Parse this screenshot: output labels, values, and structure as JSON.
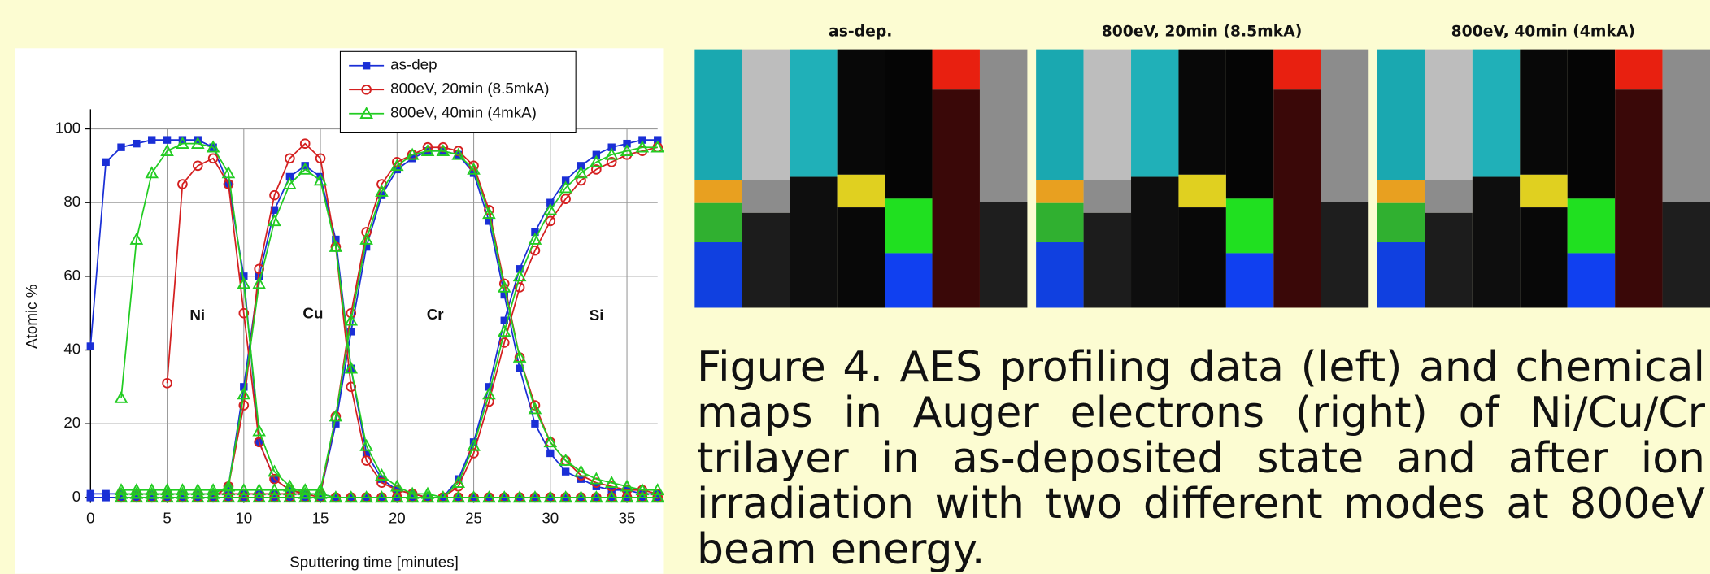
{
  "chart_data": {
    "type": "line",
    "xlabel": "Sputtering time [minutes]",
    "ylabel": "Atomic %",
    "x": [
      0,
      1,
      2,
      3,
      4,
      5,
      6,
      7,
      8,
      9,
      10,
      11,
      12,
      13,
      14,
      15,
      16,
      17,
      18,
      19,
      20,
      21,
      22,
      23,
      24,
      25,
      26,
      27,
      28,
      29,
      30,
      31,
      32,
      33,
      34,
      35,
      36,
      37
    ],
    "xlim": [
      0,
      37
    ],
    "xticks": [
      0,
      5,
      10,
      15,
      20,
      25,
      30,
      35
    ],
    "ylim": [
      0,
      100
    ],
    "yticks": [
      0,
      20,
      40,
      60,
      80,
      100
    ],
    "grid": true,
    "legend": "top-right",
    "annotations": [
      "Ni",
      "Cu",
      "Cr",
      "Si"
    ],
    "series": [
      {
        "name": "as-dep",
        "color": "#1a2fd6",
        "marker": "square",
        "profiles": [
          [
            41,
            91,
            95,
            96,
            97,
            97,
            97,
            97,
            95,
            85,
            60,
            15,
            5,
            2,
            1,
            1,
            0,
            0,
            0,
            0,
            0,
            0,
            0,
            0,
            0,
            0,
            0,
            0,
            0,
            0,
            0,
            0,
            0,
            0,
            0,
            0,
            0,
            0
          ],
          [
            0,
            0,
            0,
            0,
            0,
            0,
            0,
            0,
            0,
            3,
            30,
            60,
            78,
            87,
            90,
            87,
            70,
            35,
            12,
            5,
            2,
            1,
            0,
            0,
            0,
            0,
            0,
            0,
            0,
            0,
            0,
            0,
            0,
            0,
            0,
            0,
            0,
            0
          ],
          [
            1,
            1,
            1,
            1,
            1,
            1,
            1,
            1,
            1,
            1,
            1,
            1,
            1,
            1,
            1,
            1,
            20,
            45,
            68,
            82,
            89,
            92,
            94,
            94,
            93,
            88,
            75,
            55,
            35,
            20,
            12,
            7,
            5,
            3,
            2,
            2,
            1,
            1
          ],
          [
            0,
            0,
            0,
            0,
            0,
            0,
            0,
            0,
            0,
            0,
            0,
            0,
            0,
            0,
            0,
            0,
            0,
            0,
            0,
            0,
            0,
            0,
            0,
            0,
            5,
            15,
            30,
            48,
            62,
            72,
            80,
            86,
            90,
            93,
            95,
            96,
            97,
            97
          ]
        ]
      },
      {
        "name": "800eV, 20min (8.5mkA)",
        "color": "#d42020",
        "marker": "circle",
        "profiles": [
          [
            null,
            null,
            null,
            null,
            null,
            31,
            85,
            90,
            92,
            85,
            50,
            15,
            5,
            2,
            1,
            0,
            0,
            0,
            0,
            0,
            0,
            0,
            0,
            0,
            0,
            0,
            0,
            0,
            0,
            0,
            0,
            0,
            0,
            0,
            0,
            0,
            0,
            0
          ],
          [
            null,
            null,
            0,
            0,
            0,
            0,
            0,
            0,
            0,
            3,
            25,
            62,
            82,
            92,
            96,
            92,
            68,
            30,
            10,
            4,
            2,
            1,
            0,
            0,
            0,
            0,
            0,
            0,
            0,
            0,
            0,
            0,
            0,
            0,
            0,
            0,
            0,
            0
          ],
          [
            null,
            null,
            1,
            1,
            1,
            1,
            1,
            1,
            1,
            1,
            1,
            1,
            1,
            1,
            1,
            1,
            22,
            50,
            72,
            85,
            91,
            93,
            95,
            95,
            94,
            90,
            78,
            58,
            38,
            25,
            15,
            10,
            6,
            4,
            3,
            2,
            2,
            1
          ],
          [
            null,
            null,
            0,
            0,
            0,
            0,
            0,
            0,
            0,
            0,
            0,
            0,
            0,
            0,
            0,
            0,
            0,
            0,
            0,
            0,
            0,
            0,
            0,
            0,
            3,
            12,
            26,
            42,
            57,
            67,
            75,
            81,
            86,
            89,
            91,
            93,
            94,
            95
          ]
        ]
      },
      {
        "name": "800eV, 40min (4mkA)",
        "color": "#22cc22",
        "marker": "triangle",
        "profiles": [
          [
            null,
            null,
            27,
            70,
            88,
            94,
            96,
            96,
            95,
            88,
            58,
            18,
            7,
            3,
            1,
            1,
            0,
            0,
            0,
            0,
            0,
            0,
            0,
            0,
            0,
            0,
            0,
            0,
            0,
            0,
            0,
            0,
            0,
            0,
            0,
            0,
            0,
            0
          ],
          [
            null,
            null,
            1,
            1,
            1,
            1,
            1,
            1,
            1,
            3,
            28,
            58,
            75,
            85,
            89,
            86,
            68,
            35,
            14,
            6,
            3,
            1,
            1,
            0,
            0,
            0,
            0,
            0,
            0,
            0,
            0,
            0,
            0,
            0,
            0,
            0,
            0,
            0
          ],
          [
            null,
            null,
            2,
            2,
            2,
            2,
            2,
            2,
            2,
            2,
            2,
            2,
            2,
            2,
            2,
            2,
            22,
            48,
            70,
            83,
            90,
            93,
            94,
            94,
            93,
            89,
            77,
            57,
            38,
            24,
            15,
            10,
            7,
            5,
            4,
            3,
            2,
            2
          ],
          [
            null,
            null,
            0,
            0,
            0,
            0,
            0,
            0,
            0,
            0,
            0,
            0,
            0,
            0,
            0,
            0,
            0,
            0,
            0,
            0,
            0,
            0,
            0,
            0,
            4,
            14,
            28,
            45,
            60,
            70,
            78,
            84,
            88,
            91,
            93,
            94,
            95,
            95
          ]
        ]
      }
    ]
  },
  "maps": {
    "titles": [
      "as-dep.",
      "800eV, 20min (8.5mkA)",
      "800eV, 40min (4mkA)"
    ]
  },
  "caption": "Figure 4. AES profiling data (left) and chemical maps in Auger electrons (right) of Ni/Cu/Cr trilayer in as-deposited state and after ion irradiation with two different modes at 800eV beam energy."
}
